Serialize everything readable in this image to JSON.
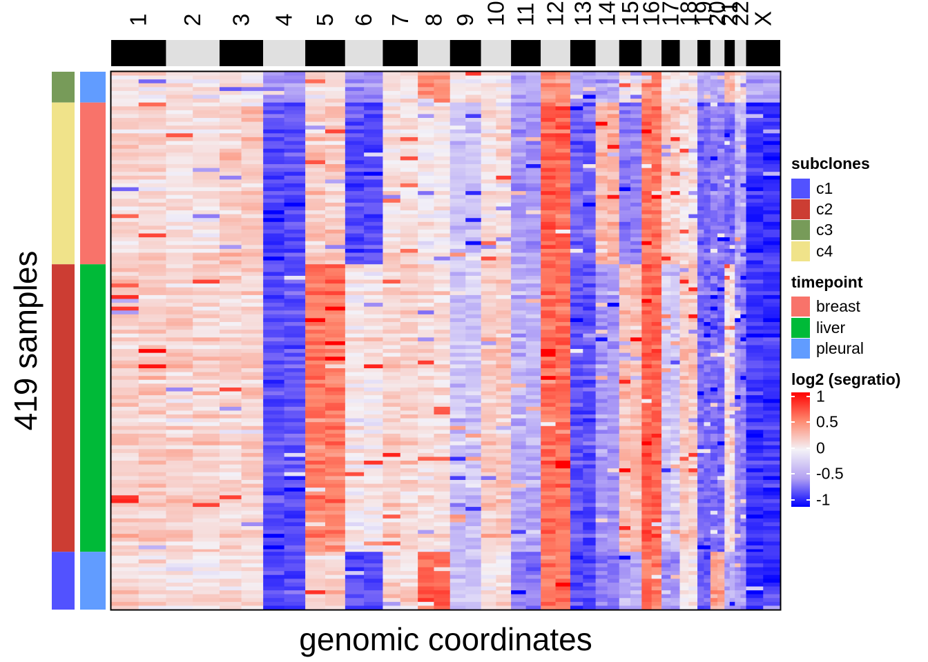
{
  "chart_data": {
    "type": "heatmap",
    "title": "",
    "xlabel": "genomic coordinates",
    "ylabel": "419 samples",
    "chromosomes": [
      "1",
      "2",
      "3",
      "4",
      "5",
      "6",
      "7",
      "8",
      "9",
      "10",
      "11",
      "12",
      "13",
      "14",
      "15",
      "16",
      "17",
      "18",
      "19",
      "20",
      "21",
      "22",
      "X"
    ],
    "chromosome_relative_lengths": [
      249,
      243,
      198,
      191,
      181,
      171,
      159,
      146,
      141,
      136,
      135,
      134,
      115,
      107,
      102,
      90,
      83,
      80,
      59,
      64,
      47,
      51,
      155
    ],
    "sample_groups": [
      {
        "subclone": "c3",
        "timepoint": "pleural",
        "rows": 24
      },
      {
        "subclone": "c4",
        "timepoint": "breast",
        "rows": 126
      },
      {
        "subclone": "c2",
        "timepoint": "liver",
        "rows": 224
      },
      {
        "subclone": "c1",
        "timepoint": "pleural",
        "rows": 45
      }
    ],
    "approx_group_mean_log2_by_chromosome": {
      "c3": [
        0.1,
        0.1,
        0.1,
        -0.4,
        0.1,
        -0.4,
        0.1,
        0.5,
        0.1,
        0.1,
        -0.3,
        0.5,
        -0.3,
        -0.3,
        0.1,
        0.5,
        0.1,
        0.1,
        -0.3,
        -0.3,
        0.3,
        0.1,
        -0.3
      ],
      "c4": [
        0.15,
        0.1,
        0.2,
        -0.7,
        0.2,
        -0.7,
        0.1,
        0.05,
        -0.2,
        0.1,
        -0.4,
        0.65,
        -0.6,
        0.3,
        -0.5,
        0.6,
        0.2,
        0.1,
        -0.6,
        -0.5,
        -0.6,
        -0.3,
        -0.8
      ],
      "c2": [
        0.2,
        0.15,
        0.15,
        -0.7,
        0.55,
        0.05,
        0.15,
        0.1,
        -0.2,
        0.2,
        -0.3,
        0.6,
        -0.7,
        -0.4,
        0.25,
        0.65,
        -0.2,
        0.2,
        -0.6,
        -0.6,
        0.1,
        -0.5,
        -0.8
      ],
      "c1": [
        0.15,
        0.1,
        0.15,
        -0.7,
        0.2,
        -0.7,
        0.15,
        0.7,
        -0.2,
        0.1,
        -0.5,
        0.6,
        -0.7,
        -0.5,
        -0.3,
        0.6,
        -0.4,
        0.1,
        -0.6,
        0.4,
        -0.3,
        -0.4,
        -0.8
      ]
    },
    "color_scale": {
      "title": "log2 (segratio)",
      "ticks": [
        "1",
        "0.5",
        "0",
        "-0.5",
        "-1"
      ],
      "range": [
        -1,
        1
      ],
      "colors": {
        "high": "#ff0000",
        "mid": "#f4f2f7",
        "low": "#0000ff"
      }
    },
    "legend_placement": "right"
  },
  "legends": {
    "subclones": {
      "title": "subclones",
      "items": [
        {
          "label": "c1",
          "color": "#5252ff"
        },
        {
          "label": "c2",
          "color": "#cc3d33"
        },
        {
          "label": "c3",
          "color": "#779b59"
        },
        {
          "label": "c4",
          "color": "#f0e38a"
        }
      ]
    },
    "timepoint": {
      "title": "timepoint",
      "items": [
        {
          "label": "breast",
          "color": "#f8736a"
        },
        {
          "label": "liver",
          "color": "#00ba38"
        },
        {
          "label": "pleural",
          "color": "#619cff"
        }
      ]
    }
  },
  "colors": {
    "chrom_dark": "#000000",
    "chrom_light": "#e0e0e0",
    "subclone_c1": "#5252ff",
    "subclone_c2": "#cc3d33",
    "subclone_c3": "#779b59",
    "subclone_c4": "#f0e38a",
    "tp_breast": "#f8736a",
    "tp_liver": "#00ba38",
    "tp_pleural": "#619cff"
  }
}
